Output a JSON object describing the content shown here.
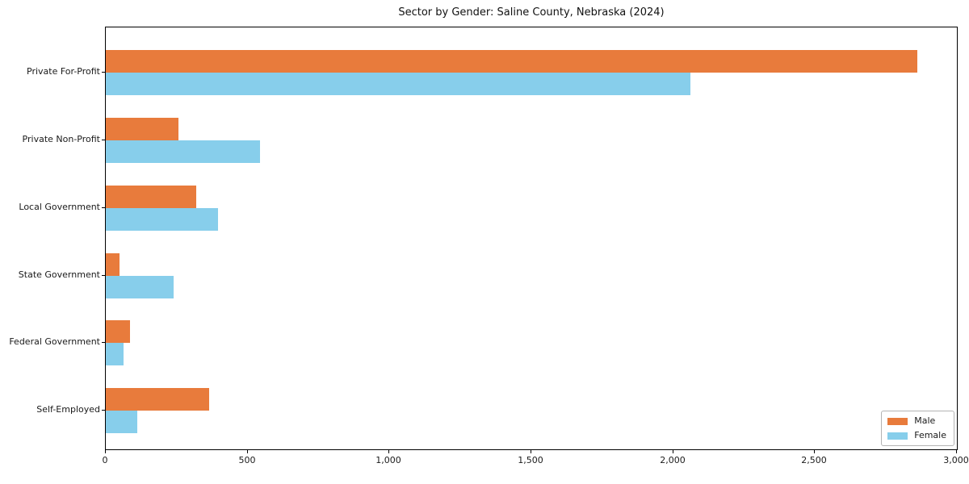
{
  "chart_data": {
    "type": "bar",
    "orientation": "horizontal",
    "title": "Sector by Gender: Saline County, Nebraska (2024)",
    "categories": [
      "Private For-Profit",
      "Private Non-Profit",
      "Local Government",
      "State Government",
      "Federal Government",
      "Self-Employed"
    ],
    "series": [
      {
        "name": "Male",
        "color": "#e87b3c",
        "values": [
          2860,
          255,
          320,
          48,
          85,
          363
        ]
      },
      {
        "name": "Female",
        "color": "#87ceeb",
        "values": [
          2060,
          545,
          395,
          240,
          62,
          110
        ]
      }
    ],
    "xlim": [
      0,
      3000
    ],
    "x_ticks": [
      0,
      500,
      1000,
      1500,
      2000,
      2500,
      3000
    ],
    "x_tick_labels": [
      "0",
      "500",
      "1,000",
      "1,500",
      "2,000",
      "2,500",
      "3,000"
    ],
    "legend": {
      "position": "lower right",
      "entries": [
        "Male",
        "Female"
      ]
    },
    "grid": false,
    "colors": {
      "spine": "#000000",
      "text": "#1a1a1a",
      "background": "#ffffff"
    }
  }
}
